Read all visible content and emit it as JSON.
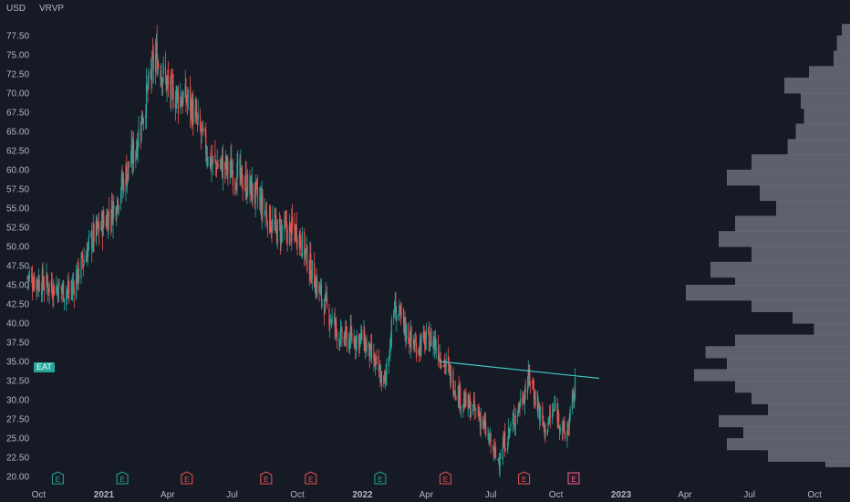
{
  "header": {
    "currency": "USD",
    "indicator": "VRVP"
  },
  "symbol_tag": "EAT",
  "colors": {
    "background": "#161a25",
    "up": "#26a69a",
    "down": "#ef5350",
    "trendline": "#3fc7c2",
    "volume_profile": "#6b6f7a",
    "axis_text": "#b2b5be",
    "earnings_green": "#26a69a",
    "earnings_red": "#ef5350",
    "earnings_pink": "#f06292"
  },
  "chart_data": {
    "type": "candlestick",
    "ylabel": "USD",
    "y_ticks": [
      "20.00",
      "22.50",
      "25.00",
      "27.50",
      "30.00",
      "32.50",
      "35.00",
      "37.50",
      "40.00",
      "42.50",
      "45.00",
      "47.50",
      "50.00",
      "52.50",
      "55.00",
      "57.50",
      "60.00",
      "62.50",
      "65.00",
      "67.50",
      "70.00",
      "72.50",
      "75.00",
      "77.50"
    ],
    "ylim": [
      19.3,
      79.5
    ],
    "x_ticks": [
      {
        "label": "Oct",
        "date": "2020-10-01"
      },
      {
        "label": "2021",
        "date": "2021-01-01"
      },
      {
        "label": "Apr",
        "date": "2021-04-01"
      },
      {
        "label": "Jul",
        "date": "2021-07-01"
      },
      {
        "label": "Oct",
        "date": "2021-10-01"
      },
      {
        "label": "2022",
        "date": "2022-01-01"
      },
      {
        "label": "Apr",
        "date": "2022-04-01"
      },
      {
        "label": "Jul",
        "date": "2022-07-01"
      },
      {
        "label": "Oct",
        "date": "2022-10-01"
      },
      {
        "label": "2023",
        "date": "2023-01-01"
      },
      {
        "label": "Apr",
        "date": "2023-04-01"
      },
      {
        "label": "Jul",
        "date": "2023-07-01"
      },
      {
        "label": "Oct",
        "date": "2023-10-01"
      }
    ],
    "xlim": [
      "2020-09-15",
      "2023-11-20"
    ],
    "price_path": [
      {
        "date": "2020-09-15",
        "close": 46
      },
      {
        "date": "2020-10-15",
        "close": 45
      },
      {
        "date": "2020-11-15",
        "close": 44
      },
      {
        "date": "2020-12-15",
        "close": 51
      },
      {
        "date": "2021-01-15",
        "close": 55
      },
      {
        "date": "2021-02-15",
        "close": 63
      },
      {
        "date": "2021-03-15",
        "close": 75
      },
      {
        "date": "2021-04-05",
        "close": 70
      },
      {
        "date": "2021-05-01",
        "close": 69
      },
      {
        "date": "2021-06-01",
        "close": 61
      },
      {
        "date": "2021-07-01",
        "close": 60
      },
      {
        "date": "2021-08-01",
        "close": 57
      },
      {
        "date": "2021-09-01",
        "close": 52
      },
      {
        "date": "2021-10-01",
        "close": 52
      },
      {
        "date": "2021-11-01",
        "close": 44
      },
      {
        "date": "2021-12-01",
        "close": 38
      },
      {
        "date": "2022-01-01",
        "close": 38
      },
      {
        "date": "2022-02-01",
        "close": 32
      },
      {
        "date": "2022-02-15",
        "close": 42
      },
      {
        "date": "2022-03-15",
        "close": 37
      },
      {
        "date": "2022-04-10",
        "close": 38
      },
      {
        "date": "2022-05-01",
        "close": 34
      },
      {
        "date": "2022-05-20",
        "close": 30
      },
      {
        "date": "2022-06-15",
        "close": 28
      },
      {
        "date": "2022-07-10",
        "close": 22
      },
      {
        "date": "2022-08-01",
        "close": 27
      },
      {
        "date": "2022-08-25",
        "close": 33
      },
      {
        "date": "2022-09-15",
        "close": 26
      },
      {
        "date": "2022-09-30",
        "close": 29
      },
      {
        "date": "2022-10-15",
        "close": 25
      },
      {
        "date": "2022-10-31",
        "close": 33
      }
    ],
    "trendline": [
      {
        "date": "2022-04-20",
        "price": 35.0
      },
      {
        "date": "2022-12-01",
        "price": 32.8
      }
    ],
    "earnings_markers": [
      {
        "date": "2020-10-28",
        "label": "E",
        "kind": "green"
      },
      {
        "date": "2021-01-27",
        "label": "E",
        "kind": "green"
      },
      {
        "date": "2021-04-28",
        "label": "E",
        "kind": "red"
      },
      {
        "date": "2021-08-18",
        "label": "E",
        "kind": "red"
      },
      {
        "date": "2021-10-20",
        "label": "E",
        "kind": "red"
      },
      {
        "date": "2022-01-26",
        "label": "E",
        "kind": "green"
      },
      {
        "date": "2022-04-28",
        "label": "E",
        "kind": "red"
      },
      {
        "date": "2022-08-17",
        "label": "E",
        "kind": "red"
      },
      {
        "date": "2022-10-26",
        "label": "E",
        "kind": "pink"
      }
    ],
    "volume_profile_note": "VRVP histogram on the right edge; relative widths by price level",
    "volume_profile": [
      {
        "price": 79.0,
        "w": 0.05
      },
      {
        "price": 77.5,
        "w": 0.08
      },
      {
        "price": 75.5,
        "w": 0.1
      },
      {
        "price": 73.5,
        "w": 0.25
      },
      {
        "price": 72.0,
        "w": 0.4
      },
      {
        "price": 70.0,
        "w": 0.3
      },
      {
        "price": 68.0,
        "w": 0.28
      },
      {
        "price": 66.0,
        "w": 0.33
      },
      {
        "price": 64.0,
        "w": 0.38
      },
      {
        "price": 62.0,
        "w": 0.6
      },
      {
        "price": 60.0,
        "w": 0.75
      },
      {
        "price": 58.0,
        "w": 0.55
      },
      {
        "price": 56.0,
        "w": 0.45
      },
      {
        "price": 54.0,
        "w": 0.7
      },
      {
        "price": 52.0,
        "w": 0.8
      },
      {
        "price": 50.0,
        "w": 0.6
      },
      {
        "price": 48.0,
        "w": 0.85
      },
      {
        "price": 46.0,
        "w": 0.7
      },
      {
        "price": 45.0,
        "w": 1.0
      },
      {
        "price": 43.0,
        "w": 0.6
      },
      {
        "price": 41.5,
        "w": 0.35
      },
      {
        "price": 40.0,
        "w": 0.22
      },
      {
        "price": 38.5,
        "w": 0.7
      },
      {
        "price": 37.0,
        "w": 0.88
      },
      {
        "price": 35.5,
        "w": 0.75
      },
      {
        "price": 34.0,
        "w": 0.95
      },
      {
        "price": 32.5,
        "w": 0.7
      },
      {
        "price": 31.0,
        "w": 0.6
      },
      {
        "price": 29.5,
        "w": 0.5
      },
      {
        "price": 28.0,
        "w": 0.8
      },
      {
        "price": 26.5,
        "w": 0.65
      },
      {
        "price": 25.0,
        "w": 0.75
      },
      {
        "price": 23.5,
        "w": 0.5
      },
      {
        "price": 22.0,
        "w": 0.15
      }
    ]
  }
}
